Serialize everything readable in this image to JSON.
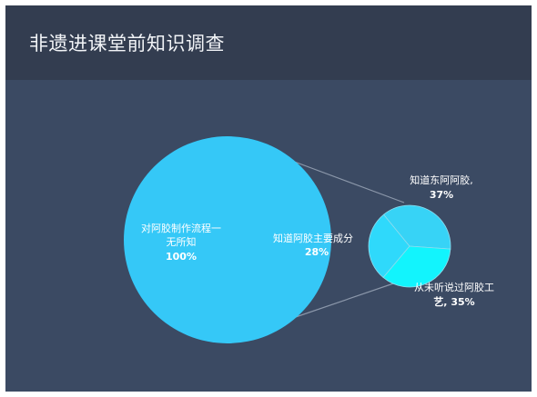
{
  "page": {
    "title": "非遗进课堂前知识调查"
  },
  "colors": {
    "header_bg": "#333d50",
    "slide_bg": "#3b4a63",
    "main_circle": "#35c8f7",
    "connector": "#8b97aa",
    "slice_known": "#37d3f6",
    "slice_main": "#2fd9fb",
    "slice_never": "#12f4fd",
    "slice_border": "#8fdcee"
  },
  "chart_data": {
    "type": "pie",
    "title": "非遗进课堂前知识调查",
    "main": {
      "label_line1": "对阿胶制作流程一",
      "label_line2": "无所知",
      "value_text": "100%",
      "value": 100
    },
    "slices": [
      {
        "label": "知道阿胶主要成分",
        "value_text": "28%",
        "value": 28
      },
      {
        "label": "知道东阿阿胶,",
        "value_text": "37%",
        "value": 37
      },
      {
        "label_line1": "从未听说过阿胶工",
        "label_line2": "艺,",
        "value_text": "35%",
        "value": 35
      }
    ]
  }
}
